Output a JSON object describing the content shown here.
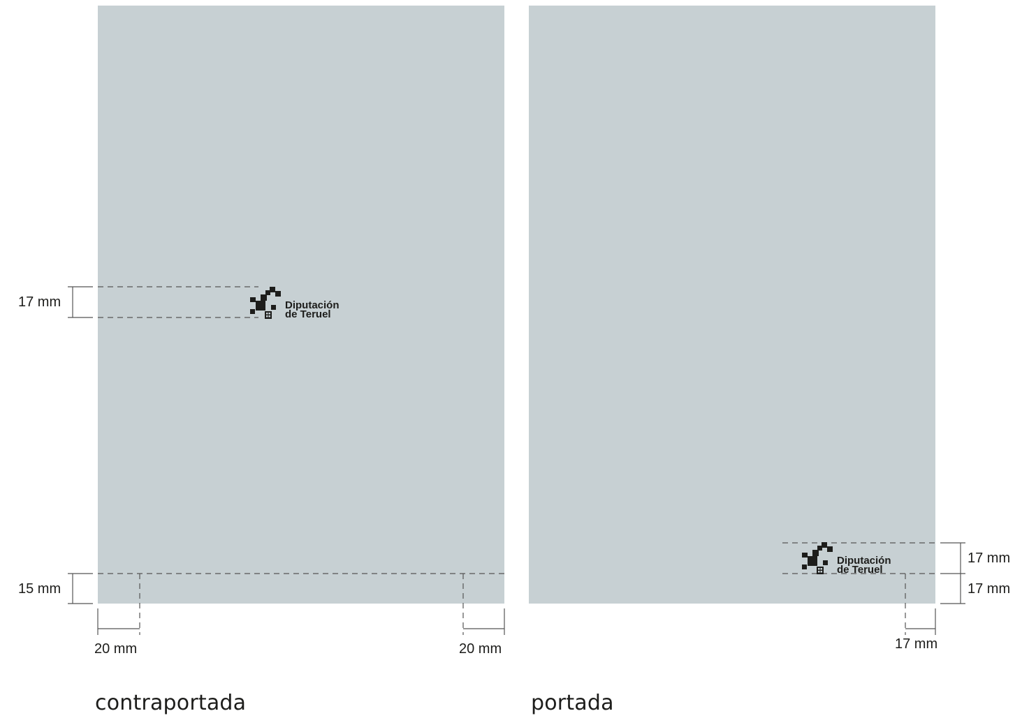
{
  "colors": {
    "page_fill": "#c7d0d3",
    "ink": "#1d1d1b",
    "dim_line": "#555555"
  },
  "logo": {
    "icon": "diputacion-teruel-pixel-cross-icon",
    "line1": "Diputación",
    "line2": "de Teruel"
  },
  "back_cover": {
    "caption": "contraportada",
    "logo_height": "17 mm",
    "bottom_margin": "15 mm",
    "left_margin": "20 mm",
    "right_margin": "20 mm"
  },
  "front_cover": {
    "caption": "portada",
    "logo_height": "17 mm",
    "bottom_margin": "17 mm",
    "right_margin": "17 mm"
  }
}
